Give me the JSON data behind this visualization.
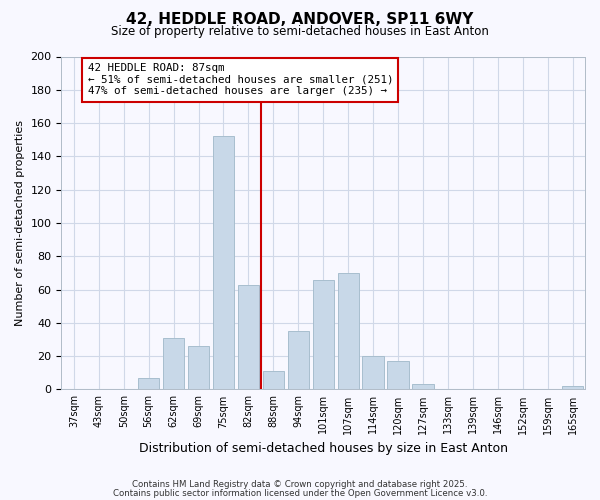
{
  "title": "42, HEDDLE ROAD, ANDOVER, SP11 6WY",
  "subtitle": "Size of property relative to semi-detached houses in East Anton",
  "xlabel": "Distribution of semi-detached houses by size in East Anton",
  "ylabel": "Number of semi-detached properties",
  "footnote1": "Contains HM Land Registry data © Crown copyright and database right 2025.",
  "footnote2": "Contains public sector information licensed under the Open Government Licence v3.0.",
  "bar_labels": [
    "37sqm",
    "43sqm",
    "50sqm",
    "56sqm",
    "62sqm",
    "69sqm",
    "75sqm",
    "82sqm",
    "88sqm",
    "94sqm",
    "101sqm",
    "107sqm",
    "114sqm",
    "120sqm",
    "127sqm",
    "133sqm",
    "139sqm",
    "146sqm",
    "152sqm",
    "159sqm",
    "165sqm"
  ],
  "bar_values": [
    0,
    0,
    0,
    7,
    31,
    26,
    152,
    63,
    11,
    35,
    66,
    70,
    20,
    17,
    3,
    0,
    0,
    0,
    0,
    0,
    2
  ],
  "bar_color": "#c8d8e8",
  "bar_edge_color": "#a8bece",
  "vline_x": 7.5,
  "vline_color": "#cc0000",
  "ylim": [
    0,
    200
  ],
  "yticks": [
    0,
    20,
    40,
    60,
    80,
    100,
    120,
    140,
    160,
    180,
    200
  ],
  "annotation_title": "42 HEDDLE ROAD: 87sqm",
  "annotation_line1": "← 51% of semi-detached houses are smaller (251)",
  "annotation_line2": "47% of semi-detached houses are larger (235) →",
  "annotation_box_color": "#ffffff",
  "annotation_box_edge": "#cc0000",
  "bg_color": "#f8f8ff",
  "grid_color": "#d0d8e8"
}
